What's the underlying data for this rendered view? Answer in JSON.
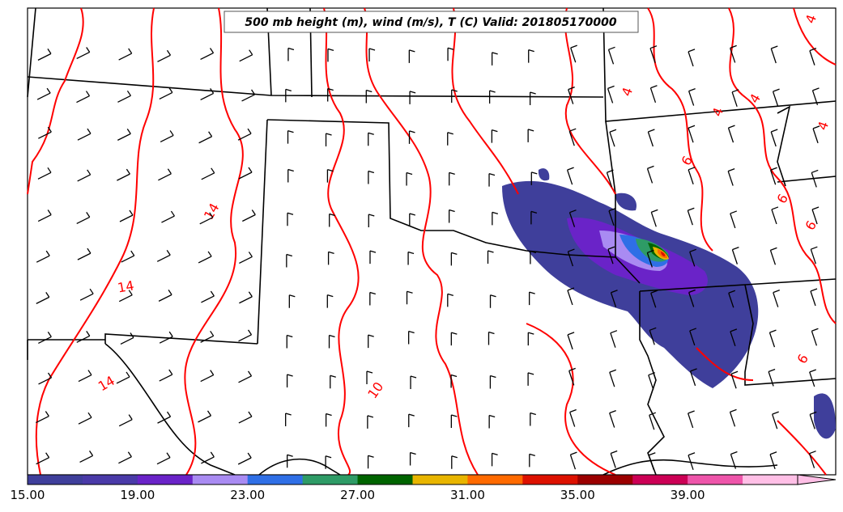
{
  "map": {
    "title": "500 mb height (m), wind (m/s), T (C) Valid: 201805170000"
  },
  "colorbar": {
    "labels": [
      "15.00",
      "19.00",
      "23.00",
      "27.00",
      "31.00",
      "35.00",
      "39.00"
    ],
    "colors": [
      "#3f3f9b",
      "#4a3aa8",
      "#6a23c8",
      "#a98bf2",
      "#2f6fe6",
      "#2e9b66",
      "#006400",
      "#e8b500",
      "#ff6a00",
      "#dd1100",
      "#9b0000",
      "#cc0055",
      "#ee55aa",
      "#ffbfe6"
    ]
  },
  "contour_labels": [
    {
      "text": "14"
    },
    {
      "text": "14"
    },
    {
      "text": "14"
    },
    {
      "text": "10"
    },
    {
      "text": "4"
    },
    {
      "text": "4"
    },
    {
      "text": "4"
    },
    {
      "text": "4"
    },
    {
      "text": "4"
    },
    {
      "text": "6"
    },
    {
      "text": "6"
    },
    {
      "text": "6"
    },
    {
      "text": "6"
    }
  ],
  "colors": {
    "contour": "#ff0000",
    "border": "#000000",
    "barb": "#000000"
  }
}
